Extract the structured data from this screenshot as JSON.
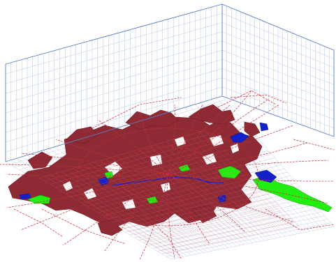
{
  "figure": {
    "type": "3d-urban-land-use-map",
    "layers": [
      {
        "name": "built-up-area",
        "color": "#8e2a34"
      },
      {
        "name": "green-space",
        "color": "#22ee11"
      },
      {
        "name": "water",
        "color": "#1420c8"
      },
      {
        "name": "road-network",
        "color": "#c0303a"
      },
      {
        "name": "grid",
        "color": "#9fb0d6"
      },
      {
        "name": "frame-edges",
        "color": "#5b7fc4"
      }
    ],
    "background": "#ffffff"
  }
}
